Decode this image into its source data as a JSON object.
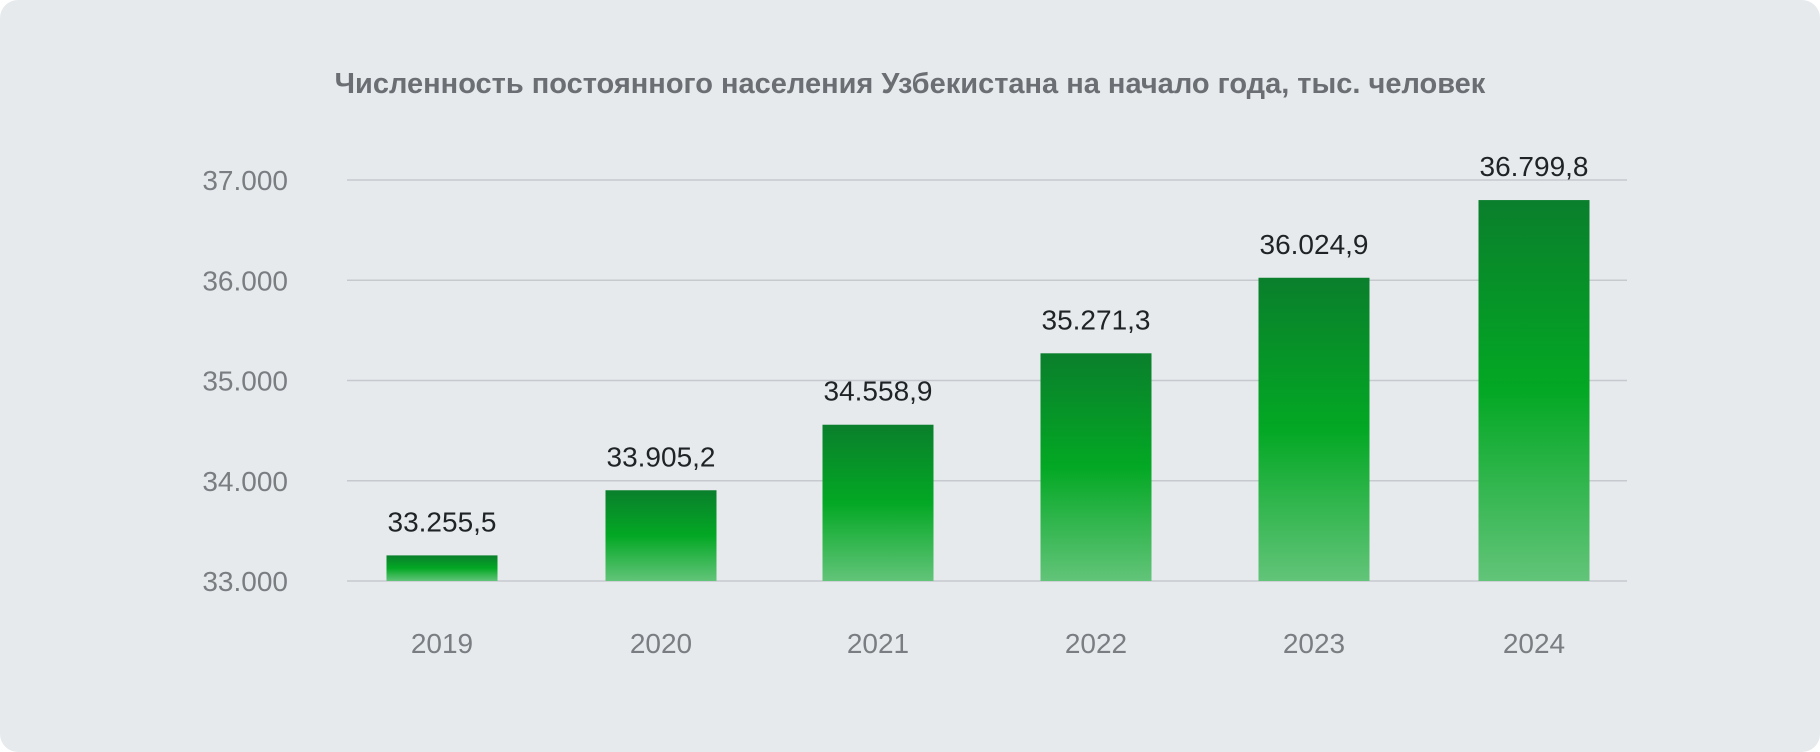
{
  "chart_data": {
    "type": "bar",
    "title": "Численность постоянного населения Узбекистана на начало года, тыс. человек",
    "categories": [
      "2019",
      "2020",
      "2021",
      "2022",
      "2023",
      "2024"
    ],
    "values": [
      33255.5,
      33905.2,
      34558.9,
      35271.3,
      36024.9,
      36799.8
    ],
    "value_labels": [
      "33.255,5",
      "33.905,2",
      "34.558,9",
      "35.271,3",
      "36.024,9",
      "36.799,8"
    ],
    "yticks": [
      33000,
      34000,
      35000,
      36000,
      37000
    ],
    "ytick_labels": [
      "33.000",
      "34.000",
      "35.000",
      "36.000",
      "37.000"
    ],
    "ylim": [
      33000,
      37000
    ],
    "xlabel": "",
    "ylabel": "",
    "grid": true,
    "legend": "none",
    "colors": {
      "bar_top": "#0a7f2c",
      "bar_mid": "#03a824",
      "bar_bottom": "#62c479",
      "background": "#e6eaed"
    }
  }
}
